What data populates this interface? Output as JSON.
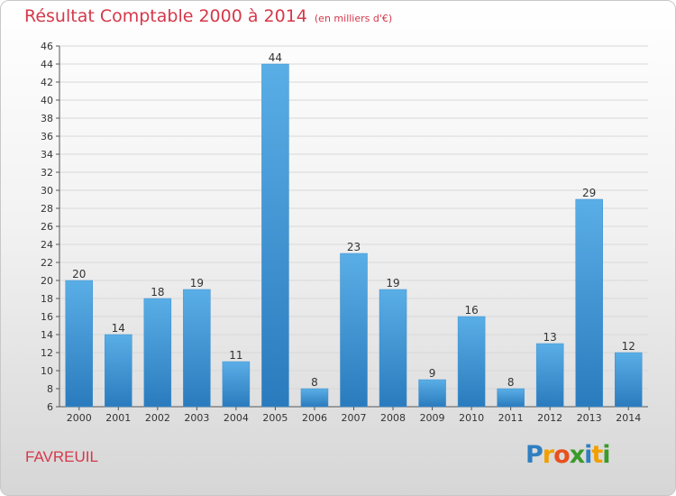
{
  "chart_data": {
    "type": "bar",
    "title": "Résultat Comptable 2000 à 2014",
    "subtitle": "(en milliers d'€)",
    "categories": [
      "2000",
      "2001",
      "2002",
      "2003",
      "2004",
      "2005",
      "2006",
      "2007",
      "2008",
      "2009",
      "2010",
      "2011",
      "2012",
      "2013",
      "2014"
    ],
    "values": [
      20,
      14,
      18,
      19,
      11,
      44,
      8,
      23,
      19,
      9,
      16,
      8,
      13,
      29,
      12
    ],
    "ylim": [
      6,
      46
    ],
    "yticks": [
      6,
      8,
      10,
      12,
      14,
      16,
      18,
      20,
      22,
      24,
      26,
      28,
      30,
      32,
      34,
      36,
      38,
      40,
      42,
      44,
      46
    ],
    "grid": true,
    "xlabel": "",
    "ylabel": "",
    "colors": {
      "bar_light": "#5aaee6",
      "bar_dark": "#2a7bbd",
      "title": "#d5384a"
    }
  },
  "footer": {
    "commune": "FAVREUIL",
    "logo": {
      "text": "Proxiti",
      "letters": [
        {
          "char": "P",
          "color": "#2f7fc1"
        },
        {
          "char": "r",
          "color": "#f0a000"
        },
        {
          "char": "o",
          "color": "#e8501e"
        },
        {
          "char": "x",
          "color": "#3a9a2a"
        },
        {
          "char": "i",
          "color": "#2f7fc1"
        },
        {
          "char": "t",
          "color": "#f0a000"
        },
        {
          "char": "i",
          "color": "#3a9a2a"
        }
      ]
    }
  }
}
